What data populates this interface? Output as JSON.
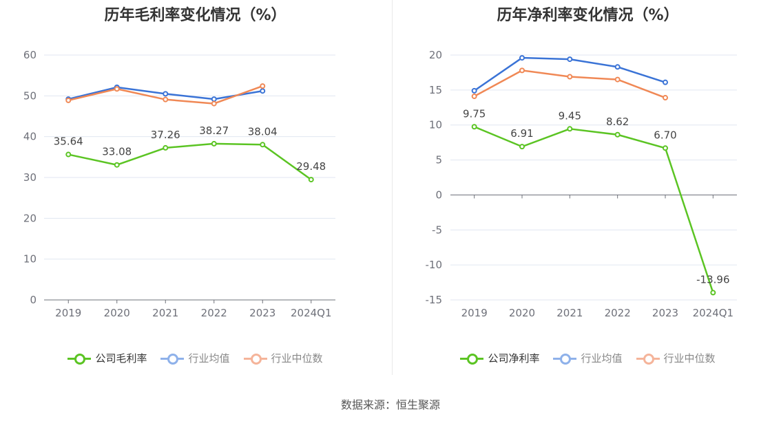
{
  "colors": {
    "company": "#5bc423",
    "industry_avg": "#3a73d6",
    "industry_median": "#f08855",
    "faded_company": "#5bc423",
    "faded_avg": "#8eb1ea",
    "faded_median": "#f5b49a"
  },
  "legend": {
    "company_gross": "公司毛利率",
    "company_net": "公司净利率",
    "industry_avg": "行业均值",
    "industry_median": "行业中位数"
  },
  "source": "数据来源：恒生聚源",
  "chart_data": [
    {
      "type": "line",
      "title": "历年毛利率变化情况（%）",
      "categories": [
        "2019",
        "2020",
        "2021",
        "2022",
        "2023",
        "2024Q1"
      ],
      "ylim": [
        0,
        60
      ],
      "yticks": [
        0,
        10,
        20,
        30,
        40,
        50,
        60
      ],
      "grid": true,
      "legend_position": "bottom",
      "series": [
        {
          "name": "公司毛利率",
          "key": "company",
          "values": [
            35.64,
            33.08,
            37.26,
            38.27,
            38.04,
            29.48
          ],
          "labels": [
            "35.64",
            "33.08",
            "37.26",
            "38.27",
            "38.04",
            "29.48"
          ]
        },
        {
          "name": "行业均值",
          "key": "industry_avg",
          "values": [
            49.2,
            52.1,
            50.5,
            49.2,
            51.2,
            null
          ]
        },
        {
          "name": "行业中位数",
          "key": "industry_median",
          "values": [
            48.9,
            51.7,
            49.1,
            48.1,
            52.4,
            null
          ]
        }
      ]
    },
    {
      "type": "line",
      "title": "历年净利率变化情况（%）",
      "categories": [
        "2019",
        "2020",
        "2021",
        "2022",
        "2023",
        "2024Q1"
      ],
      "ylim": [
        -15,
        20
      ],
      "yticks": [
        -15,
        -10,
        -5,
        0,
        5,
        10,
        15,
        20
      ],
      "grid": true,
      "legend_position": "bottom",
      "series": [
        {
          "name": "公司净利率",
          "key": "company",
          "values": [
            9.75,
            6.91,
            9.45,
            8.62,
            6.7,
            -13.96
          ],
          "labels": [
            "9.75",
            "6.91",
            "9.45",
            "8.62",
            "6.70",
            "-13.96"
          ]
        },
        {
          "name": "行业均值",
          "key": "industry_avg",
          "values": [
            14.9,
            19.6,
            19.4,
            18.3,
            16.1,
            null
          ]
        },
        {
          "name": "行业中位数",
          "key": "industry_median",
          "values": [
            14.1,
            17.8,
            16.9,
            16.5,
            13.9,
            null
          ]
        }
      ]
    }
  ]
}
